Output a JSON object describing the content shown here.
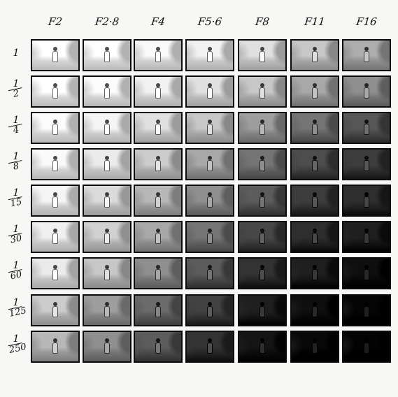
{
  "columns": [
    "F2",
    "F2·8",
    "F4",
    "F5·6",
    "F8",
    "F11",
    "F16"
  ],
  "rows": [
    {
      "num": "1",
      "den": ""
    },
    {
      "num": "1",
      "den": "2"
    },
    {
      "num": "1",
      "den": "4"
    },
    {
      "num": "1",
      "den": "8"
    },
    {
      "num": "1",
      "den": "15"
    },
    {
      "num": "1",
      "den": "30"
    },
    {
      "num": "1",
      "den": "60"
    },
    {
      "num": "1",
      "den": "125"
    },
    {
      "num": "1",
      "den": "250"
    }
  ],
  "brightness": [
    [
      1.0,
      1.0,
      0.98,
      0.95,
      0.88,
      0.78,
      0.68
    ],
    [
      1.0,
      0.99,
      0.95,
      0.88,
      0.78,
      0.66,
      0.56
    ],
    [
      0.99,
      0.96,
      0.88,
      0.78,
      0.62,
      0.46,
      0.34
    ],
    [
      0.98,
      0.92,
      0.8,
      0.66,
      0.46,
      0.3,
      0.24
    ],
    [
      0.96,
      0.86,
      0.72,
      0.56,
      0.36,
      0.24,
      0.18
    ],
    [
      0.94,
      0.82,
      0.66,
      0.46,
      0.28,
      0.18,
      0.12
    ],
    [
      0.92,
      0.78,
      0.56,
      0.36,
      0.2,
      0.12,
      0.06
    ],
    [
      0.8,
      0.62,
      0.42,
      0.26,
      0.12,
      0.06,
      0.02
    ],
    [
      0.72,
      0.56,
      0.36,
      0.2,
      0.08,
      0.03,
      0.01
    ]
  ],
  "colors": {
    "ink": "#0b0b0b",
    "paper": "#f7f7f5"
  }
}
